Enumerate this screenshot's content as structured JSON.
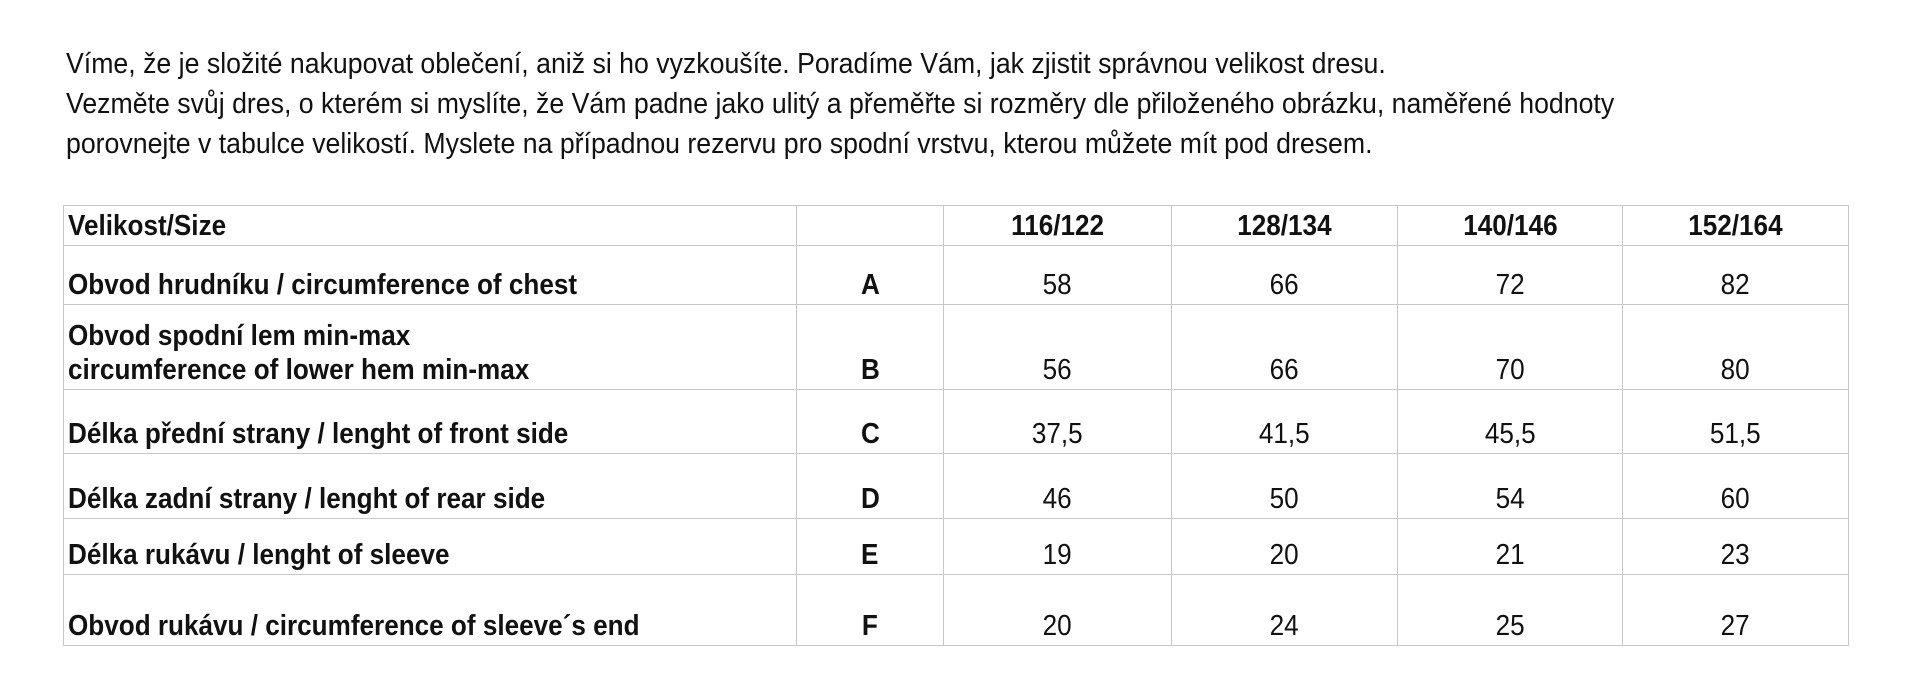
{
  "intro": {
    "lines": [
      "Víme, že je složité nakupovat oblečení, aniž si ho vyzkoušíte. Poradíme Vám, jak zjistit správnou velikost dresu.",
      "Vezměte svůj dres, o kterém si myslíte, že Vám padne jako ulitý a přeměřte si rozměry dle přiloženého obrázku, naměřené hodnoty",
      "porovnejte v tabulce velikostí. Myslete na případnou rezervu pro spodní vrstvu, kterou můžete mít pod dresem."
    ]
  },
  "table": {
    "header": {
      "label": "Velikost/Size",
      "code": "",
      "sizes": [
        "116/122",
        "128/134",
        "140/146",
        "152/164"
      ]
    },
    "rows": [
      {
        "label": "Obvod hrudníku / circumference of chest",
        "label2": "",
        "code": "A",
        "values": [
          "58",
          "66",
          "72",
          "82"
        ]
      },
      {
        "label": "Obvod spodní lem min-max",
        "label2": "circumference of lower hem min-max",
        "code": "B",
        "values": [
          "56",
          "66",
          "70",
          "80"
        ]
      },
      {
        "label": "Délka přední strany / lenght of front side",
        "label2": "",
        "code": "C",
        "values": [
          "37,5",
          "41,5",
          "45,5",
          "51,5"
        ]
      },
      {
        "label": "Délka zadní strany / lenght of rear side",
        "label2": "",
        "code": "D",
        "values": [
          "46",
          "50",
          "54",
          "60"
        ]
      },
      {
        "label": "Délka rukávu / lenght of sleeve",
        "label2": "",
        "code": "E",
        "values": [
          "19",
          "20",
          "21",
          "23"
        ]
      },
      {
        "label": "Obvod rukávu / circumference of sleeve´s end",
        "label2": "",
        "code": "F",
        "values": [
          "20",
          "24",
          "25",
          "27"
        ]
      }
    ]
  }
}
